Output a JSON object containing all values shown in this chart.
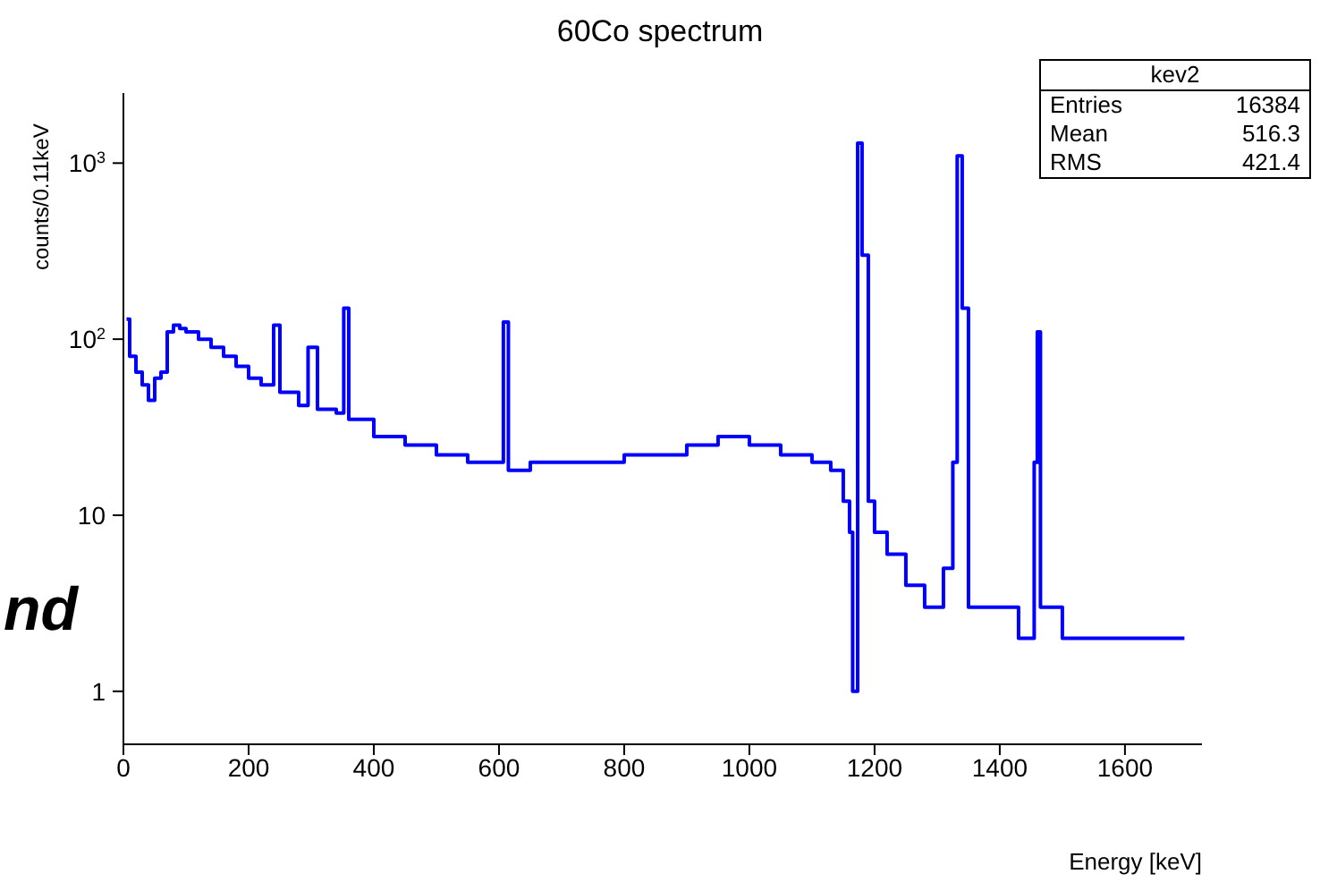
{
  "chart_data": {
    "type": "step",
    "title": "60Co spectrum",
    "xlabel": "Energy [keV]",
    "ylabel": "counts/0.11keV",
    "log": "y",
    "marker": "none",
    "line_style": "solid",
    "annotations": [
      "kev2",
      "Entries",
      "16384",
      "Mean",
      "516.3",
      "RMS",
      "421.4",
      "nd"
    ],
    "xlim": [
      0,
      1723
    ],
    "xticks": [
      0,
      200,
      400,
      600,
      800,
      1000,
      1200,
      1400,
      1600
    ],
    "ylim": [
      0.5,
      2500
    ],
    "yticks": [
      {
        "value": 1,
        "label": "1"
      },
      {
        "value": 10,
        "label": "10"
      },
      {
        "value": 100,
        "label": "10$^{2}$"
      },
      {
        "value": 1000,
        "label": "10$^{3}$"
      }
    ],
    "x": [
      5,
      10,
      20,
      30,
      40,
      50,
      60,
      70,
      80,
      90,
      100,
      120,
      140,
      160,
      180,
      200,
      220,
      240,
      250,
      280,
      295,
      310,
      340,
      352,
      360,
      400,
      450,
      500,
      550,
      600,
      607,
      615,
      650,
      700,
      750,
      800,
      850,
      900,
      950,
      1000,
      1050,
      1100,
      1130,
      1150,
      1160,
      1165,
      1173,
      1180,
      1190,
      1200,
      1220,
      1250,
      1280,
      1310,
      1325,
      1332,
      1340,
      1350,
      1400,
      1430,
      1455,
      1460,
      1465,
      1500,
      1550,
      1600,
      1650,
      1695
    ],
    "series": [
      {
        "color": "#0000ff",
        "values": [
          130,
          80,
          65,
          55,
          45,
          60,
          65,
          110,
          120,
          115,
          110,
          100,
          90,
          80,
          70,
          60,
          55,
          120,
          50,
          42,
          90,
          40,
          38,
          150,
          35,
          28,
          25,
          22,
          20,
          20,
          125,
          18,
          20,
          20,
          20,
          22,
          22,
          25,
          28,
          25,
          22,
          20,
          18,
          12,
          8,
          1,
          1300,
          300,
          12,
          8,
          6,
          4,
          3,
          5,
          20,
          1100,
          150,
          3,
          3,
          2,
          20,
          110,
          3,
          2,
          2,
          2,
          2,
          2
        ]
      }
    ]
  }
}
